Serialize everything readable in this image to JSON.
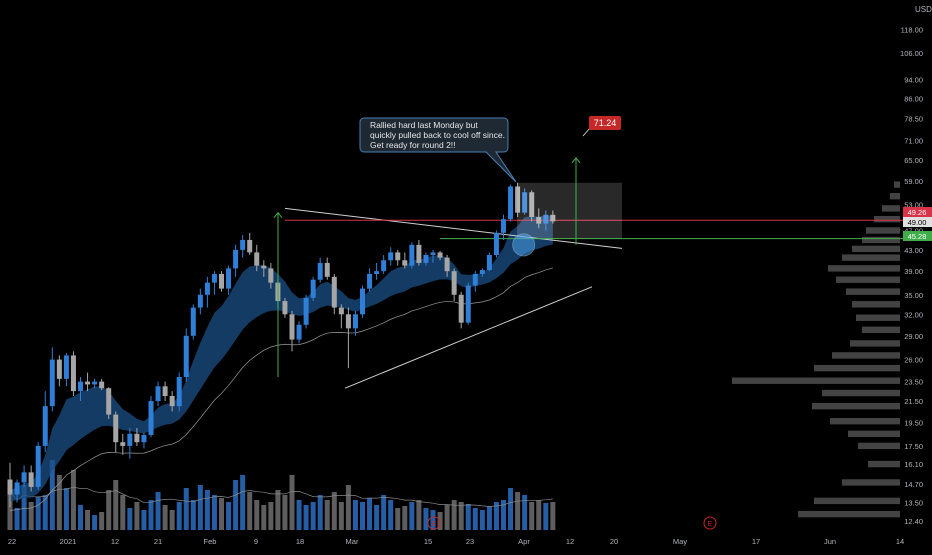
{
  "currency": "USD",
  "annotation": {
    "lines": [
      "Rallied hard last Monday but",
      "quickly pulled back to cool off since.",
      "Get ready for round 2!!"
    ]
  },
  "target_label": "71.24",
  "price_labels": {
    "red_line": "49.26",
    "last_price": "49.00",
    "green_line": "45.28"
  },
  "earnings_marker": "E",
  "colors": {
    "background": "#000000",
    "up_candle": "#2f7fd8",
    "down_candle": "#a6a6a6",
    "volume_up": "#2c6fc2",
    "volume_down": "#6e6e6e",
    "ema_band": "#1b4f85",
    "resistance_red": "#d9334a",
    "support_green": "#3fae4a",
    "target_arrow": "#3fae4a",
    "trend_lines": "#d0d0d0",
    "target_label_bg": "#c62828",
    "volume_profile": "#4a4a4a",
    "axis_text": "#b2b5be"
  },
  "chart_data": {
    "type": "candlestick",
    "y_scale": "log",
    "ylim": [
      11.9,
      128
    ],
    "y_ticks": [
      "118.00",
      "106.00",
      "94.00",
      "86.00",
      "78.50",
      "71.00",
      "65.00",
      "59.00",
      "53.00",
      "47.00",
      "43.00",
      "39.00",
      "35.00",
      "32.00",
      "29.00",
      "26.00",
      "23.50",
      "21.50",
      "19.50",
      "17.50",
      "16.10",
      "14.70",
      "13.50",
      "12.40"
    ],
    "x_ticks": [
      "22",
      "2021",
      "12",
      "21",
      "Feb",
      "9",
      "18",
      "Mar",
      "15",
      "23",
      "Apr",
      "12",
      "20",
      "May",
      "17",
      "Jun",
      "14"
    ],
    "candles": [
      [
        15.0,
        16.2,
        13.2,
        14.0
      ],
      [
        14.0,
        15.0,
        13.5,
        14.8
      ],
      [
        14.8,
        16.0,
        14.5,
        15.5
      ],
      [
        15.5,
        16.0,
        14.2,
        14.5
      ],
      [
        14.5,
        17.8,
        14.3,
        17.5
      ],
      [
        17.5,
        22.5,
        17.0,
        21.0
      ],
      [
        21.0,
        27.5,
        20.5,
        26.0
      ],
      [
        26.0,
        26.5,
        23.0,
        23.8
      ],
      [
        23.8,
        26.8,
        23.0,
        26.5
      ],
      [
        26.5,
        27.0,
        22.0,
        22.5
      ],
      [
        22.5,
        24.0,
        21.5,
        23.5
      ],
      [
        23.5,
        24.5,
        22.5,
        23.2
      ],
      [
        23.2,
        23.8,
        22.8,
        23.5
      ],
      [
        23.5,
        23.8,
        22.6,
        22.8
      ],
      [
        22.8,
        22.9,
        19.8,
        20.2
      ],
      [
        20.2,
        20.5,
        17.0,
        17.8
      ],
      [
        17.8,
        18.5,
        16.8,
        17.5
      ],
      [
        17.5,
        19.0,
        16.5,
        18.5
      ],
      [
        18.5,
        19.0,
        17.5,
        17.8
      ],
      [
        17.8,
        18.6,
        17.3,
        18.4
      ],
      [
        18.4,
        22.0,
        18.2,
        21.5
      ],
      [
        21.5,
        23.5,
        21.0,
        23.0
      ],
      [
        23.0,
        23.5,
        21.5,
        22.0
      ],
      [
        22.0,
        22.5,
        20.5,
        21.0
      ],
      [
        21.0,
        24.5,
        20.5,
        24.0
      ],
      [
        24.0,
        30.0,
        23.5,
        29.0
      ],
      [
        29.0,
        33.5,
        28.5,
        33.0
      ],
      [
        33.0,
        36.0,
        32.0,
        35.0
      ],
      [
        35.0,
        38.0,
        33.0,
        37.0
      ],
      [
        37.0,
        39.0,
        35.0,
        38.5
      ],
      [
        38.5,
        39.0,
        35.5,
        36.0
      ],
      [
        36.0,
        40.0,
        35.0,
        39.5
      ],
      [
        39.5,
        44.0,
        38.0,
        43.0
      ],
      [
        43.0,
        46.0,
        41.5,
        45.0
      ],
      [
        45.0,
        46.5,
        42.0,
        42.5
      ],
      [
        42.5,
        44.0,
        39.0,
        40.0
      ],
      [
        40.0,
        41.0,
        38.0,
        39.5
      ],
      [
        39.5,
        40.5,
        36.0,
        37.0
      ],
      [
        37.0,
        37.5,
        33.0,
        34.0
      ],
      [
        34.0,
        34.5,
        31.5,
        32.0
      ],
      [
        32.0,
        32.5,
        27.0,
        28.5
      ],
      [
        28.5,
        31.0,
        28.0,
        30.5
      ],
      [
        30.5,
        35.0,
        30.0,
        34.5
      ],
      [
        34.5,
        38.0,
        34.0,
        37.5
      ],
      [
        37.5,
        41.5,
        37.0,
        40.5
      ],
      [
        40.5,
        41.5,
        37.5,
        38.0
      ],
      [
        38.0,
        38.5,
        32.0,
        33.0
      ],
      [
        33.0,
        33.5,
        30.0,
        32.0
      ],
      [
        32.0,
        33.0,
        25.0,
        30.0
      ],
      [
        30.0,
        32.5,
        29.0,
        32.0
      ],
      [
        32.0,
        36.5,
        31.5,
        36.0
      ],
      [
        36.0,
        39.5,
        35.5,
        38.5
      ],
      [
        38.5,
        40.5,
        37.5,
        39.0
      ],
      [
        39.0,
        42.0,
        38.5,
        41.0
      ],
      [
        41.0,
        43.5,
        40.0,
        42.5
      ],
      [
        42.5,
        43.0,
        40.0,
        41.0
      ],
      [
        41.0,
        42.5,
        39.5,
        40.0
      ],
      [
        40.0,
        44.5,
        39.5,
        44.0
      ],
      [
        44.0,
        45.0,
        40.0,
        40.5
      ],
      [
        40.5,
        42.5,
        40.0,
        42.0
      ],
      [
        42.0,
        43.0,
        40.5,
        42.5
      ],
      [
        42.5,
        42.8,
        41.0,
        41.5
      ],
      [
        41.5,
        42.0,
        38.0,
        39.0
      ],
      [
        39.0,
        39.5,
        34.0,
        35.0
      ],
      [
        35.0,
        35.5,
        30.0,
        30.8
      ],
      [
        30.8,
        37.0,
        30.5,
        36.5
      ],
      [
        36.5,
        39.0,
        35.5,
        38.5
      ],
      [
        38.5,
        39.5,
        38.0,
        39.2
      ],
      [
        39.2,
        42.5,
        39.0,
        42.0
      ],
      [
        42.0,
        47.0,
        41.5,
        46.5
      ],
      [
        46.5,
        50.5,
        45.0,
        49.5
      ],
      [
        49.5,
        58.0,
        49.0,
        57.5
      ],
      [
        57.5,
        58.5,
        50.0,
        51.0
      ],
      [
        51.0,
        57.0,
        50.5,
        56.0
      ],
      [
        56.0,
        56.5,
        49.0,
        50.0
      ],
      [
        50.0,
        52.0,
        47.5,
        48.5
      ],
      [
        48.5,
        51.5,
        47.0,
        50.5
      ],
      [
        50.5,
        51.5,
        48.5,
        49.0
      ]
    ],
    "volume": [
      38,
      22,
      45,
      28,
      33,
      35,
      70,
      55,
      42,
      60,
      25,
      20,
      15,
      18,
      40,
      50,
      35,
      22,
      28,
      20,
      30,
      38,
      25,
      20,
      28,
      42,
      30,
      45,
      40,
      35,
      32,
      28,
      50,
      55,
      38,
      30,
      25,
      28,
      40,
      35,
      55,
      30,
      25,
      28,
      35,
      30,
      38,
      28,
      45,
      30,
      28,
      32,
      25,
      35,
      30,
      22,
      24,
      28,
      30,
      22,
      20,
      18,
      25,
      30,
      28,
      26,
      22,
      20,
      24,
      28,
      30,
      42,
      38,
      35,
      28,
      30,
      27,
      28
    ],
    "target_price": 71.24,
    "red_line_price": 49.26,
    "green_line_price": 45.28,
    "last_price": 49.0
  }
}
